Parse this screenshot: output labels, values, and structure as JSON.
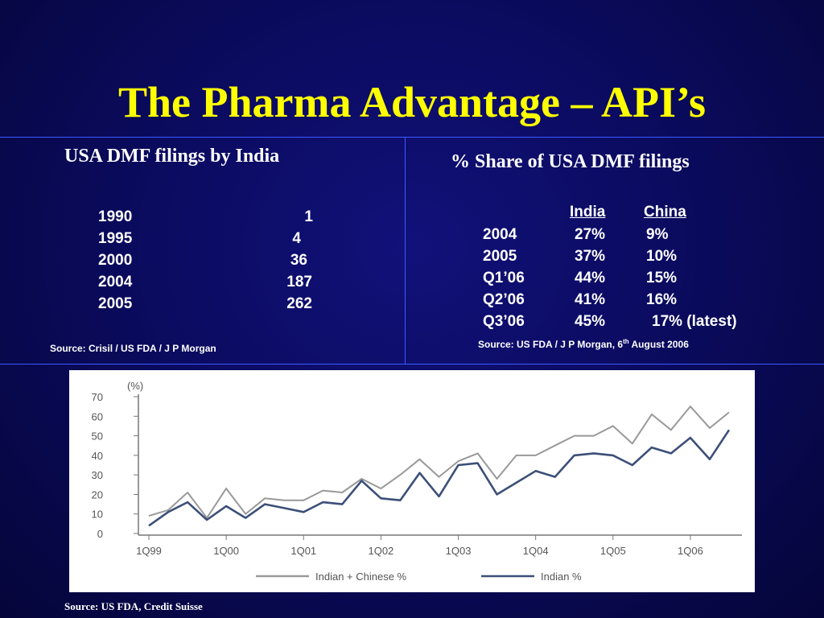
{
  "slide": {
    "title": "The Pharma Advantage – API’s"
  },
  "left_panel": {
    "heading": "USA DMF filings by India",
    "rows": [
      {
        "year": "1990",
        "count": "1"
      },
      {
        "year": "1995",
        "count": "4"
      },
      {
        "year": "2000",
        "count": "36"
      },
      {
        "year": "2004",
        "count": "187"
      },
      {
        "year": "2005",
        "count": "262"
      }
    ],
    "source": "Source: Crisil / US FDA / J P Morgan"
  },
  "right_panel": {
    "heading": "% Share of USA DMF filings",
    "columns": [
      "India",
      "China"
    ],
    "rows": [
      {
        "period": "2004",
        "india": "27%",
        "china": "9%"
      },
      {
        "period": "2005",
        "india": "37%",
        "china": "10%"
      },
      {
        "period": "Q1’06",
        "india": "44%",
        "china": "15%"
      },
      {
        "period": "Q2’06",
        "india": "41%",
        "china": "16%"
      },
      {
        "period": "Q3’06",
        "india": "45%",
        "china": "17% (latest)"
      }
    ],
    "source_prefix": "Source: US FDA / J P Morgan,",
    "source_day": "6",
    "source_sup": "th",
    "source_suffix": "August 2006"
  },
  "chart_data": {
    "type": "line",
    "ylabel": "(%)",
    "ylim": [
      0,
      70
    ],
    "yticks": [
      "0",
      "10",
      "20",
      "30",
      "40",
      "50",
      "60",
      "70"
    ],
    "xtick_labels": [
      "1Q99",
      "1Q00",
      "1Q01",
      "1Q02",
      "1Q03",
      "1Q04",
      "1Q05",
      "1Q06"
    ],
    "x": [
      "1Q99",
      "2Q99",
      "3Q99",
      "4Q99",
      "1Q00",
      "2Q00",
      "3Q00",
      "4Q00",
      "1Q01",
      "2Q01",
      "3Q01",
      "4Q01",
      "1Q02",
      "2Q02",
      "3Q02",
      "4Q02",
      "1Q03",
      "2Q03",
      "3Q03",
      "4Q03",
      "1Q04",
      "2Q04",
      "3Q04",
      "4Q04",
      "1Q05",
      "2Q05",
      "3Q05",
      "4Q05",
      "1Q06",
      "2Q06",
      "3Q06"
    ],
    "series": [
      {
        "name": "Indian + Chinese %",
        "color": "#999999",
        "values": [
          9,
          12,
          21,
          8,
          23,
          10,
          18,
          17,
          17,
          22,
          21,
          28,
          23,
          30,
          38,
          29,
          37,
          41,
          28,
          40,
          40,
          45,
          50,
          50,
          55,
          46,
          61,
          53,
          65,
          54,
          62
        ]
      },
      {
        "name": "Indian %",
        "color": "#3c4f78",
        "values": [
          4,
          11,
          16,
          7,
          14,
          8,
          15,
          13,
          11,
          16,
          15,
          27,
          18,
          17,
          31,
          19,
          35,
          36,
          20,
          26,
          32,
          29,
          40,
          41,
          40,
          35,
          44,
          41,
          49,
          38,
          53
        ]
      }
    ],
    "legend": "bottom",
    "grid": false
  },
  "chart_source": "Source: US FDA, Credit Suisse"
}
